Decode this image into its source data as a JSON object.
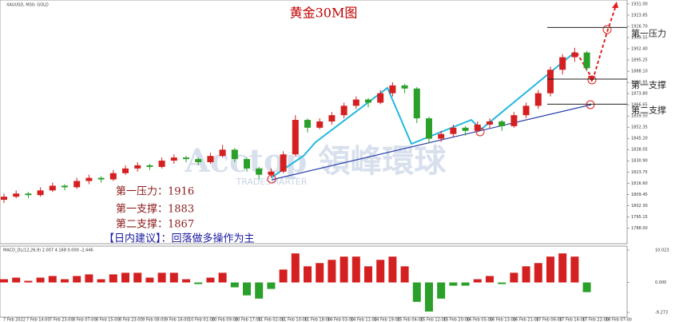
{
  "chart_data": {
    "type": "candlestick",
    "title": "黄金30M图",
    "symbol_label": "XAUUSD, M30: GOLD",
    "watermark": "Acctop 領峰環球",
    "watermark_sub": "TRADESMARTER",
    "up_color": "#d42020",
    "down_color": "#2aa02a",
    "ylim": [
      1778,
      1933.5
    ],
    "yticks": [
      {
        "value": 1931,
        "label": "1931.00"
      },
      {
        "value": 1923.85,
        "label": "1923.85"
      },
      {
        "value": 1916.7,
        "label": "1916.70"
      },
      {
        "value": 1909.55,
        "label": "1909.55"
      },
      {
        "value": 1902.4,
        "label": "1902.40"
      },
      {
        "value": 1895.25,
        "label": "1895.25"
      },
      {
        "value": 1888.1,
        "label": "1888.10"
      },
      {
        "value": 1880.95,
        "label": "1880.95"
      },
      {
        "value": 1873.8,
        "label": "1873.80"
      },
      {
        "value": 1866.65,
        "label": "1866.65"
      },
      {
        "value": 1859.5,
        "label": "1859.50"
      },
      {
        "value": 1852.35,
        "label": "1852.35"
      },
      {
        "value": 1845.2,
        "label": "1845.20"
      },
      {
        "value": 1838.05,
        "label": "1838.05"
      },
      {
        "value": 1830.9,
        "label": "1830.90"
      },
      {
        "value": 1823.75,
        "label": "1823.75"
      },
      {
        "value": 1816.6,
        "label": "1816.60"
      },
      {
        "value": 1809.45,
        "label": "1809.45"
      },
      {
        "value": 1802.3,
        "label": "1802.30"
      },
      {
        "value": 1795.15,
        "label": "1795.15"
      },
      {
        "value": 1788,
        "label": "1788.00"
      }
    ],
    "candles": [
      [
        1806,
        1810,
        1804,
        1808
      ],
      [
        1808,
        1812,
        1807,
        1810
      ],
      [
        1810,
        1811,
        1807,
        1809
      ],
      [
        1809,
        1814,
        1808,
        1812
      ],
      [
        1812,
        1817,
        1811,
        1815
      ],
      [
        1815,
        1816,
        1812,
        1814
      ],
      [
        1814,
        1820,
        1813,
        1818
      ],
      [
        1818,
        1822,
        1816,
        1820
      ],
      [
        1820,
        1821,
        1817,
        1819
      ],
      [
        1819,
        1825,
        1818,
        1823
      ],
      [
        1823,
        1828,
        1822,
        1826
      ],
      [
        1826,
        1830,
        1824,
        1828
      ],
      [
        1828,
        1829,
        1825,
        1827
      ],
      [
        1827,
        1833,
        1826,
        1831
      ],
      [
        1831,
        1835,
        1829,
        1833
      ],
      [
        1833,
        1834,
        1830,
        1832
      ],
      [
        1832,
        1833,
        1828,
        1830
      ],
      [
        1830,
        1836,
        1829,
        1834
      ],
      [
        1834,
        1841,
        1833,
        1838
      ],
      [
        1838,
        1839,
        1830,
        1832
      ],
      [
        1832,
        1833,
        1824,
        1826
      ],
      [
        1826,
        1827,
        1819,
        1822
      ],
      [
        1822,
        1826,
        1820,
        1824
      ],
      [
        1824,
        1837,
        1823,
        1835
      ],
      [
        1835,
        1860,
        1834,
        1857
      ],
      [
        1857,
        1858,
        1849,
        1852
      ],
      [
        1852,
        1858,
        1851,
        1856
      ],
      [
        1856,
        1862,
        1854,
        1860
      ],
      [
        1860,
        1868,
        1858,
        1866
      ],
      [
        1866,
        1872,
        1864,
        1870
      ],
      [
        1870,
        1871,
        1865,
        1868
      ],
      [
        1868,
        1876,
        1867,
        1874
      ],
      [
        1874,
        1881,
        1872,
        1879
      ],
      [
        1879,
        1880,
        1874,
        1877
      ],
      [
        1877,
        1878,
        1855,
        1858
      ],
      [
        1858,
        1859,
        1842,
        1845
      ],
      [
        1845,
        1850,
        1843,
        1848
      ],
      [
        1848,
        1854,
        1846,
        1852
      ],
      [
        1852,
        1853,
        1847,
        1850
      ],
      [
        1850,
        1856,
        1849,
        1854
      ],
      [
        1854,
        1858,
        1852,
        1856
      ],
      [
        1856,
        1857,
        1850,
        1853
      ],
      [
        1853,
        1862,
        1852,
        1860
      ],
      [
        1860,
        1868,
        1858,
        1866
      ],
      [
        1866,
        1876,
        1864,
        1874
      ],
      [
        1874,
        1891,
        1872,
        1889
      ],
      [
        1889,
        1899,
        1886,
        1897
      ],
      [
        1897,
        1903,
        1894,
        1900
      ],
      [
        1900,
        1901,
        1888,
        1890
      ]
    ],
    "levels": [
      {
        "name": "第一压力",
        "value": 1916
      },
      {
        "name": "第一支撑",
        "value": 1883
      },
      {
        "name": "第二支撑",
        "value": 1867
      }
    ],
    "notes": [
      "第一压力：1916",
      "第一支撑：1883",
      "第二支撑：1867"
    ],
    "advice": "【日内建议】：回落做多操作为主",
    "macd": {
      "label": "MACD_DL(12,26,9) 2.007 4.168 0.000 -2.446",
      "ylim": [
        -9.273,
        10.023
      ],
      "yticks": [
        10.023,
        {
          "value": 0,
          "label": "0.000"
        },
        -9.273
      ],
      "values": [
        1,
        1.5,
        0.5,
        1.5,
        2,
        1,
        2,
        2.5,
        1,
        2.5,
        3,
        3,
        1.5,
        3,
        3,
        1,
        -0.5,
        1.5,
        3,
        -1.5,
        -4,
        -5,
        -2,
        4,
        9,
        5,
        6,
        7,
        8,
        8,
        5,
        7,
        8,
        5,
        -6,
        -9,
        -5,
        -1,
        -1,
        1,
        2,
        -0.5,
        3,
        5,
        6,
        8,
        9,
        8,
        -3
      ]
    },
    "xlabels": [
      "7 Feb 2022",
      "7 Feb 14:00",
      "7 Feb 23:00",
      "8 Feb 07:00",
      "8 Feb 15:00",
      "8 Feb 23:00",
      "9 Feb 08:00",
      "9 Feb 16:00",
      "10 Feb 01:00",
      "10 Feb 09:00",
      "10 Feb 17:00",
      "11 Feb 02:00",
      "11 Feb 10:00",
      "11 Feb 18:00",
      "14 Feb 03:00",
      "14 Feb 11:00",
      "14 Feb 19:00",
      "15 Feb 04:00",
      "15 Feb 12:00",
      "15 Feb 20:00",
      "16 Feb 05:00",
      "16 Feb 13:00",
      "16 Feb 21:00",
      "17 Feb 06:00",
      "17 Feb 14:00",
      "17 Feb 22:00",
      "18 Feb 07:00"
    ]
  }
}
